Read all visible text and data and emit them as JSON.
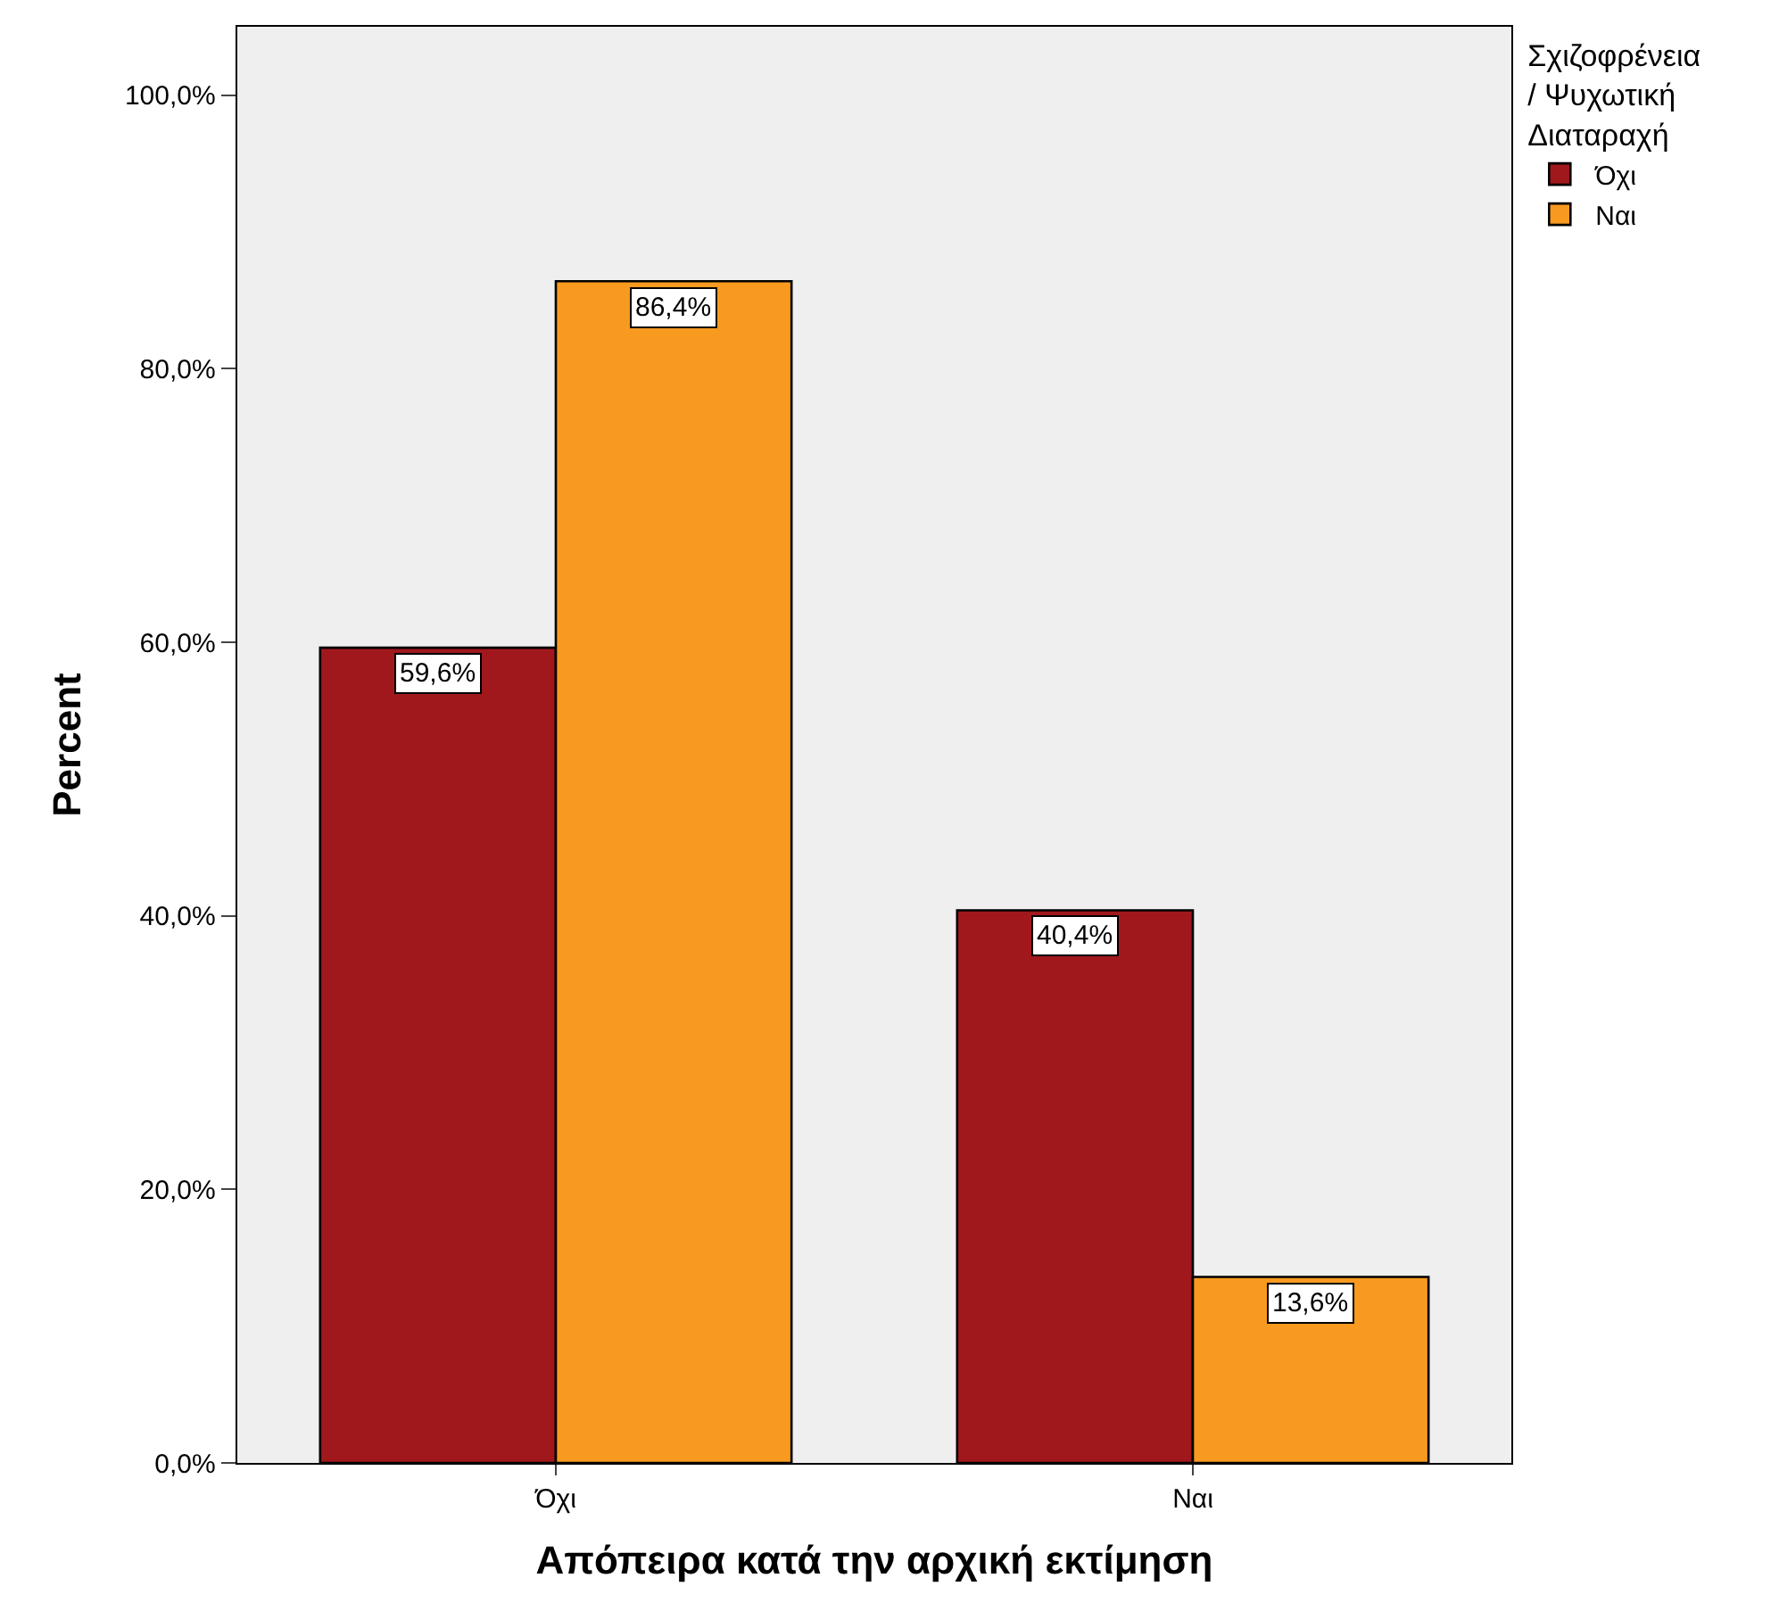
{
  "chart_data": {
    "type": "bar",
    "xlabel": "Απόπειρα κατά την αρχική εκτίμηση",
    "ylabel": "Percent",
    "legend_title": "Σχιζοφρένεια\n/ Ψυχωτική\nΔιαταραχή",
    "legend": "top right",
    "categories": [
      "Όχι",
      "Ναι"
    ],
    "series": [
      {
        "name": "Όχι",
        "color": "#a0181c",
        "values": [
          59.6,
          40.4
        ],
        "value_labels": [
          "59,6%",
          "40,4%"
        ]
      },
      {
        "name": "Ναι",
        "color": "#f89a20",
        "values": [
          86.4,
          13.6
        ],
        "value_labels": [
          "86,4%",
          "13,6%"
        ]
      }
    ],
    "ylim": [
      0,
      105
    ],
    "yticks": [
      {
        "value": 0,
        "label": "0,0%"
      },
      {
        "value": 20,
        "label": "20,0%"
      },
      {
        "value": 40,
        "label": "40,0%"
      },
      {
        "value": 60,
        "label": "60,0%"
      },
      {
        "value": 80,
        "label": "80,0%"
      },
      {
        "value": 100,
        "label": "100,0%"
      }
    ],
    "grid": false
  }
}
